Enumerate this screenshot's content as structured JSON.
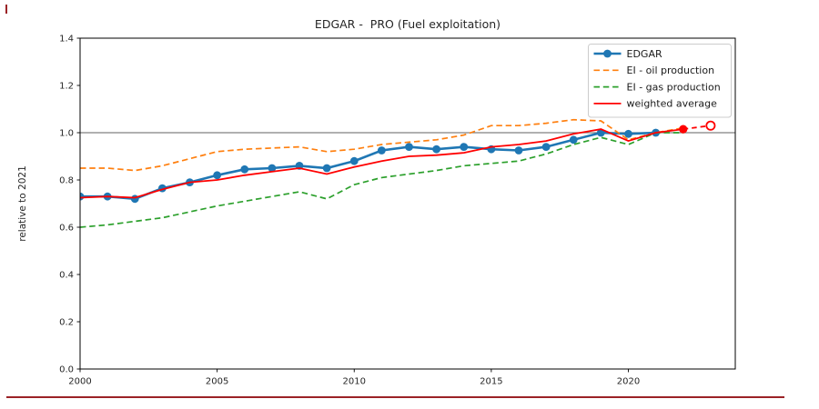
{
  "frame_marks": {
    "color": "#9b2226"
  },
  "chart_data": {
    "type": "line",
    "title": "EDGAR -  PRO (Fuel exploitation)",
    "xlabel": "",
    "ylabel": "relative to 2021",
    "xlim": [
      2000,
      2023.9
    ],
    "ylim": [
      0.0,
      1.4
    ],
    "grid": false,
    "legend_position": "upper right",
    "axis_color": "#000000",
    "tick_label_color": "#262626",
    "reference_line": {
      "y": 1.0,
      "color": "#808080"
    },
    "xticks": [
      {
        "v": 2000,
        "label": "2000"
      },
      {
        "v": 2005,
        "label": "2005"
      },
      {
        "v": 2010,
        "label": "2010"
      },
      {
        "v": 2015,
        "label": "2015"
      },
      {
        "v": 2020,
        "label": "2020"
      }
    ],
    "yticks": [
      {
        "v": 0.0,
        "label": "0.0"
      },
      {
        "v": 0.2,
        "label": "0.2"
      },
      {
        "v": 0.4,
        "label": "0.4"
      },
      {
        "v": 0.6,
        "label": "0.6"
      },
      {
        "v": 0.8,
        "label": "0.8"
      },
      {
        "v": 1.0,
        "label": "1.0"
      },
      {
        "v": 1.2,
        "label": "1.2"
      },
      {
        "v": 1.4,
        "label": "1.4"
      }
    ],
    "series": [
      {
        "name": "EDGAR",
        "color": "#1f77b4",
        "line_style": "solid",
        "line_width": 2.6,
        "marker": "circle",
        "marker_size": 4.4,
        "points": [
          [
            2000,
            0.73
          ],
          [
            2001,
            0.73
          ],
          [
            2002,
            0.72
          ],
          [
            2003,
            0.765
          ],
          [
            2004,
            0.79
          ],
          [
            2005,
            0.82
          ],
          [
            2006,
            0.845
          ],
          [
            2007,
            0.85
          ],
          [
            2008,
            0.86
          ],
          [
            2009,
            0.85
          ],
          [
            2010,
            0.88
          ],
          [
            2011,
            0.925
          ],
          [
            2012,
            0.94
          ],
          [
            2013,
            0.93
          ],
          [
            2014,
            0.94
          ],
          [
            2015,
            0.93
          ],
          [
            2016,
            0.925
          ],
          [
            2017,
            0.94
          ],
          [
            2018,
            0.97
          ],
          [
            2019,
            1.0
          ],
          [
            2020,
            0.995
          ],
          [
            2021,
            1.0
          ]
        ]
      },
      {
        "name": "EI - oil production",
        "color": "#ff7f0e",
        "line_style": "dashed",
        "line_width": 1.7,
        "marker": "none",
        "marker_size": 0,
        "points": [
          [
            2000,
            0.85
          ],
          [
            2001,
            0.85
          ],
          [
            2002,
            0.84
          ],
          [
            2003,
            0.86
          ],
          [
            2004,
            0.89
          ],
          [
            2005,
            0.92
          ],
          [
            2006,
            0.93
          ],
          [
            2007,
            0.935
          ],
          [
            2008,
            0.94
          ],
          [
            2009,
            0.92
          ],
          [
            2010,
            0.93
          ],
          [
            2011,
            0.95
          ],
          [
            2012,
            0.96
          ],
          [
            2013,
            0.97
          ],
          [
            2014,
            0.99
          ],
          [
            2015,
            1.03
          ],
          [
            2016,
            1.03
          ],
          [
            2017,
            1.04
          ],
          [
            2018,
            1.055
          ],
          [
            2019,
            1.05
          ],
          [
            2020,
            0.97
          ],
          [
            2021,
            1.0
          ],
          [
            2022,
            1.02
          ]
        ]
      },
      {
        "name": "EI - gas production",
        "color": "#2ca02c",
        "line_style": "dashed",
        "line_width": 1.7,
        "marker": "none",
        "marker_size": 0,
        "points": [
          [
            2000,
            0.6
          ],
          [
            2001,
            0.61
          ],
          [
            2002,
            0.625
          ],
          [
            2003,
            0.64
          ],
          [
            2004,
            0.665
          ],
          [
            2005,
            0.69
          ],
          [
            2006,
            0.71
          ],
          [
            2007,
            0.73
          ],
          [
            2008,
            0.75
          ],
          [
            2009,
            0.72
          ],
          [
            2010,
            0.78
          ],
          [
            2011,
            0.81
          ],
          [
            2012,
            0.825
          ],
          [
            2013,
            0.84
          ],
          [
            2014,
            0.86
          ],
          [
            2015,
            0.87
          ],
          [
            2016,
            0.88
          ],
          [
            2017,
            0.91
          ],
          [
            2018,
            0.95
          ],
          [
            2019,
            0.98
          ],
          [
            2020,
            0.95
          ],
          [
            2021,
            1.0
          ],
          [
            2022,
            1.0
          ]
        ]
      },
      {
        "name": "weighted average",
        "color": "#ff0000",
        "line_style": "solid",
        "line_width": 1.8,
        "marker": "none",
        "marker_size": 0,
        "points": [
          [
            2000,
            0.725
          ],
          [
            2001,
            0.73
          ],
          [
            2002,
            0.725
          ],
          [
            2003,
            0.76
          ],
          [
            2004,
            0.79
          ],
          [
            2005,
            0.8
          ],
          [
            2006,
            0.82
          ],
          [
            2007,
            0.835
          ],
          [
            2008,
            0.85
          ],
          [
            2009,
            0.825
          ],
          [
            2010,
            0.855
          ],
          [
            2011,
            0.88
          ],
          [
            2012,
            0.9
          ],
          [
            2013,
            0.905
          ],
          [
            2014,
            0.915
          ],
          [
            2015,
            0.94
          ],
          [
            2016,
            0.95
          ],
          [
            2017,
            0.965
          ],
          [
            2018,
            0.995
          ],
          [
            2019,
            1.015
          ],
          [
            2020,
            0.965
          ],
          [
            2021,
            1.0
          ],
          [
            2022,
            1.015
          ]
        ]
      }
    ],
    "projection": {
      "name": "weighted average projection",
      "color": "#ff0000",
      "line_style": "dashed",
      "line_width": 1.8,
      "points": [
        [
          2022,
          1.015
        ],
        [
          2023,
          1.03
        ]
      ],
      "start_marker": "filled-circle",
      "end_marker": "open-circle",
      "marker_size": 4.6
    }
  }
}
